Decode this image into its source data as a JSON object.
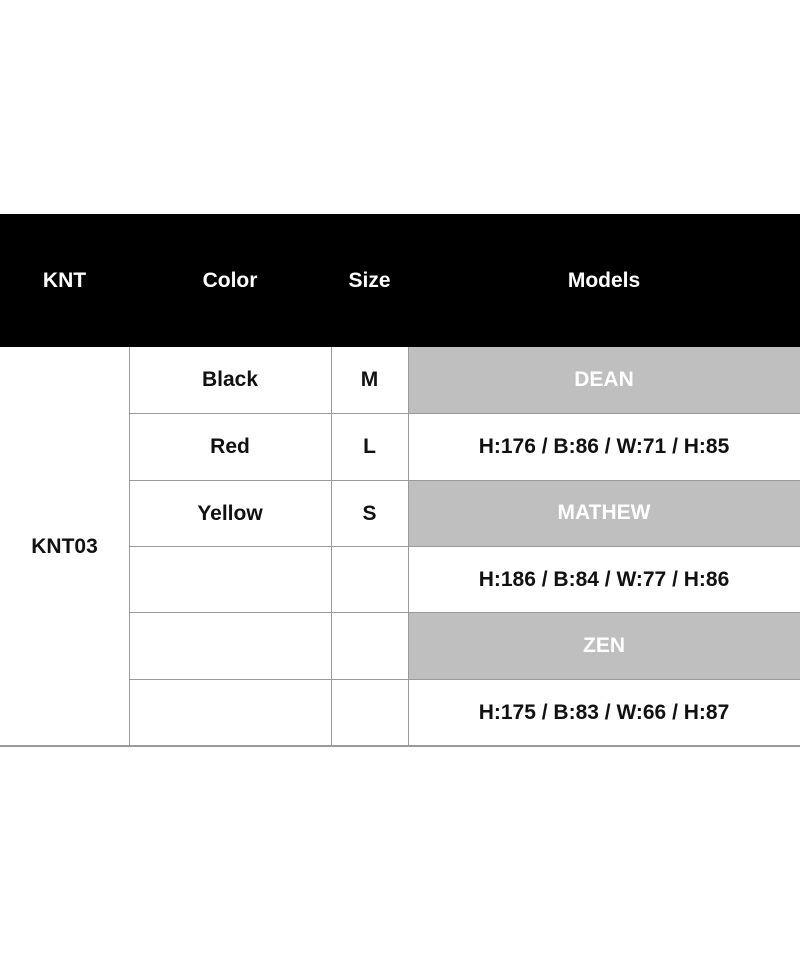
{
  "header": {
    "knt": "KNT",
    "color": "Color",
    "size": "Size",
    "models": "Models"
  },
  "product_code": "KNT03",
  "variants": [
    {
      "color": "Black",
      "size": "M"
    },
    {
      "color": "Red",
      "size": "L"
    },
    {
      "color": "Yellow",
      "size": "S"
    }
  ],
  "models": [
    {
      "name": "DEAN",
      "measurements": "H:176 / B:86 / W:71 / H:85"
    },
    {
      "name": "MATHEW",
      "measurements": "H:186 / B:84 / W:77 / H:86"
    },
    {
      "name": "ZEN",
      "measurements": "H:175 / B:83 / W:66 / H:87"
    }
  ],
  "colors": {
    "header_bg": "#000000",
    "model_band": "#bfbfbf",
    "border": "#9a9a9a"
  }
}
